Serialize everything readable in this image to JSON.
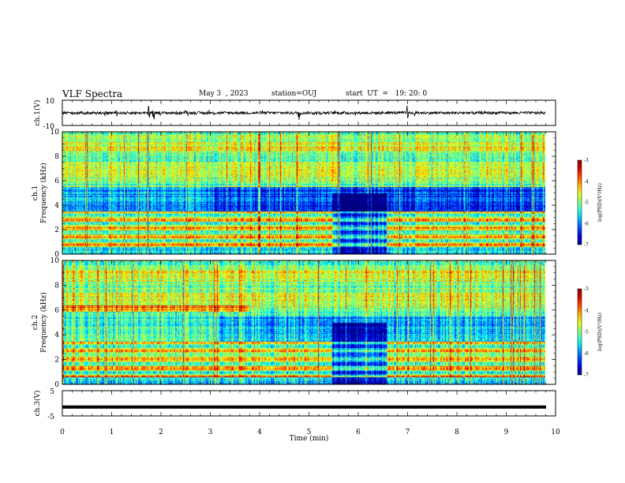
{
  "header": {
    "title": "VLF Spectra",
    "date": "May 3  , 2023",
    "station": "station=OUJ",
    "start_time": "start  UT  =   19: 20: 0"
  },
  "chart_data": [
    {
      "type": "line",
      "name": "ch1-waveform",
      "ylabel": "ch.1(V)",
      "ylim": [
        -10,
        10
      ],
      "yticks": [
        "10",
        "-10"
      ],
      "xlim": [
        0,
        10
      ],
      "baseline": 0,
      "spikes_at_min": [
        1.75,
        1.85,
        4.8,
        7.0
      ]
    },
    {
      "type": "heatmap",
      "name": "ch1-spectrogram",
      "ylabel": "ch.1\nFrequency (kHz)",
      "ylim": [
        0,
        10
      ],
      "yticks": [
        "0",
        "2",
        "4",
        "6",
        "8",
        "10"
      ],
      "xlim": [
        0,
        9.85
      ],
      "colorbar": {
        "label": "log(PSD)(V²/Hz)",
        "range": [
          -7,
          -3
        ],
        "ticks": [
          "-3",
          "-4",
          "-5",
          "-6",
          "-7"
        ]
      }
    },
    {
      "type": "heatmap",
      "name": "ch2-spectrogram",
      "ylabel": "ch.2\nFrequency (kHz)",
      "ylim": [
        0,
        10
      ],
      "yticks": [
        "0",
        "2",
        "4",
        "6",
        "8",
        "10"
      ],
      "xlim": [
        0,
        9.85
      ],
      "colorbar": {
        "label": "log(PSD)(V²/Hz)",
        "range": [
          -7,
          -3
        ],
        "ticks": [
          "-3",
          "-4",
          "-5",
          "-6",
          "-7"
        ]
      }
    },
    {
      "type": "line",
      "name": "ch3-signal",
      "ylabel": "ch.3(V)",
      "ylim": [
        -5,
        5
      ],
      "yticks": [
        "5",
        "-5"
      ],
      "xlim": [
        0,
        10
      ],
      "value": -1.5
    }
  ],
  "xaxis": {
    "label": "Time  (min)",
    "range": [
      0,
      10
    ],
    "ticks": [
      "0",
      "1",
      "2",
      "3",
      "4",
      "5",
      "6",
      "7",
      "8",
      "9",
      "10"
    ]
  },
  "colors": {
    "line": "#000000",
    "background": "#ffffff"
  }
}
